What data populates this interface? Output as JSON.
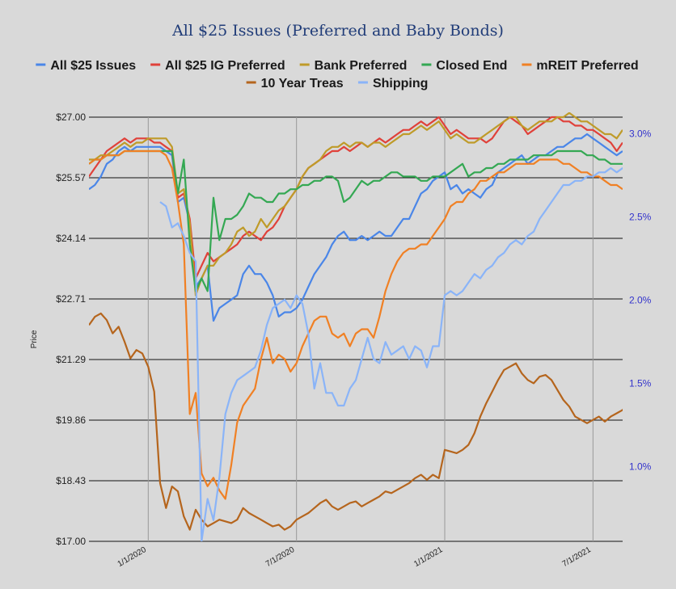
{
  "chart_data": {
    "type": "line",
    "title": "All $25 Issues (Preferred and Baby Bonds)",
    "ylabel": "Price",
    "ylabel_right": "",
    "ylim": [
      17.0,
      27.0
    ],
    "y2lim": [
      0.55,
      3.1
    ],
    "y_ticks": [
      "$17.00",
      "$18.43",
      "$19.86",
      "$21.29",
      "$22.71",
      "$24.14",
      "$25.57",
      "$27.00"
    ],
    "y2_ticks": [
      "1.0%",
      "1.5%",
      "2.0%",
      "2.5%",
      "3.0%"
    ],
    "y2_tick_values": [
      1.0,
      1.5,
      2.0,
      2.5,
      3.0
    ],
    "x_range": [
      0,
      90
    ],
    "x_ticks": [
      {
        "label": "1/1/2020",
        "x": 10
      },
      {
        "label": "7/1/2020",
        "x": 35
      },
      {
        "label": "1/1/2021",
        "x": 60
      },
      {
        "label": "7/1/2021",
        "x": 85
      }
    ],
    "legend_position": "top",
    "grid": true,
    "series": [
      {
        "name": "All $25 Issues",
        "color": "#4a86e8",
        "axis": "left",
        "x_start": 0,
        "values": [
          25.3,
          25.4,
          25.6,
          25.9,
          26.0,
          26.2,
          26.3,
          26.2,
          26.3,
          26.3,
          26.3,
          26.3,
          26.3,
          26.2,
          26.1,
          25.0,
          25.1,
          24.5,
          23.0,
          23.2,
          23.5,
          22.2,
          22.5,
          22.6,
          22.7,
          22.8,
          23.3,
          23.5,
          23.3,
          23.3,
          23.1,
          22.8,
          22.3,
          22.4,
          22.4,
          22.5,
          22.7,
          23.0,
          23.3,
          23.5,
          23.7,
          24.0,
          24.2,
          24.3,
          24.1,
          24.1,
          24.2,
          24.1,
          24.2,
          24.3,
          24.2,
          24.2,
          24.4,
          24.6,
          24.6,
          24.9,
          25.2,
          25.3,
          25.5,
          25.6,
          25.7,
          25.3,
          25.4,
          25.2,
          25.3,
          25.2,
          25.1,
          25.3,
          25.4,
          25.7,
          25.8,
          25.9,
          26.0,
          26.1,
          25.9,
          26.0,
          26.1,
          26.1,
          26.2,
          26.3,
          26.3,
          26.4,
          26.5,
          26.5,
          26.6,
          26.5,
          26.4,
          26.3,
          26.2,
          26.1,
          26.2
        ]
      },
      {
        "name": "All $25 IG Preferred",
        "color": "#e0413a",
        "axis": "left",
        "x_start": 0,
        "values": [
          25.6,
          25.8,
          26.0,
          26.2,
          26.3,
          26.4,
          26.5,
          26.4,
          26.5,
          26.5,
          26.5,
          26.4,
          26.4,
          26.3,
          26.2,
          25.1,
          25.2,
          24.6,
          23.2,
          23.5,
          23.8,
          23.6,
          23.7,
          23.8,
          23.9,
          24.0,
          24.2,
          24.3,
          24.2,
          24.1,
          24.3,
          24.4,
          24.6,
          24.9,
          25.1,
          25.3,
          25.6,
          25.8,
          25.9,
          26.0,
          26.1,
          26.2,
          26.2,
          26.3,
          26.2,
          26.3,
          26.4,
          26.3,
          26.4,
          26.5,
          26.4,
          26.5,
          26.6,
          26.7,
          26.7,
          26.8,
          26.9,
          26.8,
          26.9,
          27.0,
          26.8,
          26.6,
          26.7,
          26.6,
          26.5,
          26.5,
          26.5,
          26.4,
          26.5,
          26.7,
          26.9,
          27.0,
          26.9,
          26.8,
          26.6,
          26.7,
          26.8,
          26.9,
          27.0,
          27.0,
          26.9,
          26.9,
          26.8,
          26.8,
          26.7,
          26.7,
          26.6,
          26.5,
          26.4,
          26.2,
          26.4
        ]
      },
      {
        "name": "Bank Preferred",
        "color": "#bf9b29",
        "axis": "left",
        "x_start": 0,
        "values": [
          26.0,
          26.0,
          26.1,
          26.1,
          26.2,
          26.3,
          26.4,
          26.3,
          26.4,
          26.4,
          26.5,
          26.5,
          26.5,
          26.5,
          26.3,
          25.2,
          25.3,
          24.5,
          22.8,
          23.2,
          23.5,
          23.5,
          23.7,
          23.8,
          24.0,
          24.3,
          24.4,
          24.2,
          24.3,
          24.6,
          24.4,
          24.6,
          24.8,
          24.9,
          25.1,
          25.3,
          25.6,
          25.8,
          25.9,
          26.0,
          26.2,
          26.3,
          26.3,
          26.4,
          26.3,
          26.4,
          26.4,
          26.3,
          26.4,
          26.4,
          26.3,
          26.4,
          26.5,
          26.6,
          26.6,
          26.7,
          26.8,
          26.7,
          26.8,
          26.9,
          26.7,
          26.5,
          26.6,
          26.5,
          26.4,
          26.4,
          26.5,
          26.6,
          26.7,
          26.8,
          26.9,
          27.0,
          27.0,
          26.8,
          26.7,
          26.8,
          26.9,
          26.9,
          26.9,
          27.0,
          27.0,
          27.1,
          27.0,
          26.9,
          26.9,
          26.8,
          26.7,
          26.6,
          26.6,
          26.5,
          26.7
        ]
      },
      {
        "name": "Closed End",
        "color": "#34a853",
        "axis": "left",
        "x_start": 0,
        "values": [
          25.9,
          26.0,
          26.0,
          26.1,
          26.1,
          26.1,
          26.2,
          26.2,
          26.2,
          26.2,
          26.2,
          26.2,
          26.2,
          26.2,
          26.2,
          25.2,
          26.0,
          24.0,
          22.9,
          23.2,
          22.9,
          25.1,
          24.1,
          24.6,
          24.6,
          24.7,
          24.9,
          25.2,
          25.1,
          25.1,
          25.0,
          25.0,
          25.2,
          25.2,
          25.3,
          25.3,
          25.4,
          25.4,
          25.5,
          25.5,
          25.6,
          25.6,
          25.5,
          25.0,
          25.1,
          25.3,
          25.5,
          25.4,
          25.5,
          25.5,
          25.6,
          25.7,
          25.7,
          25.6,
          25.6,
          25.6,
          25.5,
          25.5,
          25.6,
          25.6,
          25.6,
          25.7,
          25.8,
          25.9,
          25.6,
          25.7,
          25.7,
          25.8,
          25.8,
          25.9,
          25.9,
          26.0,
          26.0,
          26.0,
          26.0,
          26.1,
          26.1,
          26.1,
          26.1,
          26.2,
          26.2,
          26.2,
          26.2,
          26.2,
          26.1,
          26.1,
          26.0,
          26.0,
          25.9,
          25.9,
          25.9
        ]
      },
      {
        "name": "mREIT Preferred",
        "color": "#f08024",
        "axis": "left",
        "x_start": 0,
        "values": [
          25.9,
          26.0,
          26.0,
          26.1,
          26.1,
          26.1,
          26.2,
          26.2,
          26.2,
          26.2,
          26.2,
          26.2,
          26.2,
          26.1,
          25.8,
          25.0,
          24.0,
          20.0,
          20.5,
          18.6,
          18.3,
          18.5,
          18.2,
          18.0,
          18.8,
          19.8,
          20.2,
          20.4,
          20.6,
          21.3,
          21.8,
          21.2,
          21.4,
          21.3,
          21.0,
          21.2,
          21.6,
          21.9,
          22.2,
          22.3,
          22.3,
          21.9,
          21.8,
          21.9,
          21.6,
          21.9,
          22.0,
          22.0,
          21.8,
          22.3,
          22.9,
          23.3,
          23.6,
          23.8,
          23.9,
          23.9,
          24.0,
          24.0,
          24.2,
          24.4,
          24.6,
          24.9,
          25.0,
          25.0,
          25.2,
          25.3,
          25.5,
          25.5,
          25.6,
          25.7,
          25.7,
          25.8,
          25.9,
          25.9,
          25.9,
          25.9,
          26.0,
          26.0,
          26.0,
          26.0,
          25.9,
          25.9,
          25.8,
          25.7,
          25.7,
          25.6,
          25.6,
          25.5,
          25.4,
          25.4,
          25.3
        ]
      },
      {
        "name": "10 Year Treas",
        "color": "#b5651d",
        "axis": "right",
        "x_start": 0,
        "values": [
          1.85,
          1.9,
          1.92,
          1.88,
          1.8,
          1.84,
          1.75,
          1.65,
          1.7,
          1.68,
          1.6,
          1.45,
          0.9,
          0.75,
          0.88,
          0.85,
          0.7,
          0.62,
          0.74,
          0.68,
          0.64,
          0.66,
          0.68,
          0.67,
          0.66,
          0.68,
          0.75,
          0.72,
          0.7,
          0.68,
          0.66,
          0.64,
          0.65,
          0.62,
          0.64,
          0.68,
          0.7,
          0.72,
          0.75,
          0.78,
          0.8,
          0.76,
          0.74,
          0.76,
          0.78,
          0.79,
          0.76,
          0.78,
          0.8,
          0.82,
          0.85,
          0.84,
          0.86,
          0.88,
          0.9,
          0.93,
          0.95,
          0.92,
          0.95,
          0.93,
          1.1,
          1.09,
          1.08,
          1.1,
          1.13,
          1.2,
          1.3,
          1.38,
          1.45,
          1.52,
          1.58,
          1.6,
          1.62,
          1.56,
          1.52,
          1.5,
          1.54,
          1.55,
          1.52,
          1.46,
          1.4,
          1.36,
          1.3,
          1.28,
          1.26,
          1.28,
          1.3,
          1.27,
          1.3,
          1.32,
          1.34,
          1.38,
          1.42,
          1.45,
          1.48,
          1.52
        ]
      },
      {
        "name": "Shipping",
        "color": "#8ab4f8",
        "axis": "left",
        "x_start": 12,
        "values": [
          25.0,
          24.9,
          24.4,
          24.5,
          24.2,
          23.8,
          23.6,
          17.0,
          18.0,
          17.5,
          18.5,
          20.0,
          20.5,
          20.8,
          20.9,
          21.0,
          21.1,
          21.5,
          22.1,
          22.5,
          22.6,
          22.7,
          22.5,
          22.8,
          22.6,
          21.9,
          20.6,
          21.2,
          20.5,
          20.5,
          20.2,
          20.2,
          20.6,
          20.8,
          21.3,
          21.8,
          21.3,
          21.2,
          21.7,
          21.4,
          21.5,
          21.6,
          21.3,
          21.6,
          21.5,
          21.1,
          21.6,
          21.6,
          22.8,
          22.9,
          22.8,
          22.9,
          23.1,
          23.3,
          23.2,
          23.4,
          23.5,
          23.7,
          23.8,
          24.0,
          24.1,
          24.0,
          24.2,
          24.3,
          24.6,
          24.8,
          25.0,
          25.2,
          25.4,
          25.4,
          25.5,
          25.5,
          25.6,
          25.6,
          25.7,
          25.7,
          25.8,
          25.7,
          25.8,
          25.8,
          25.5,
          25.7,
          25.8,
          25.6,
          25.5
        ]
      }
    ]
  }
}
